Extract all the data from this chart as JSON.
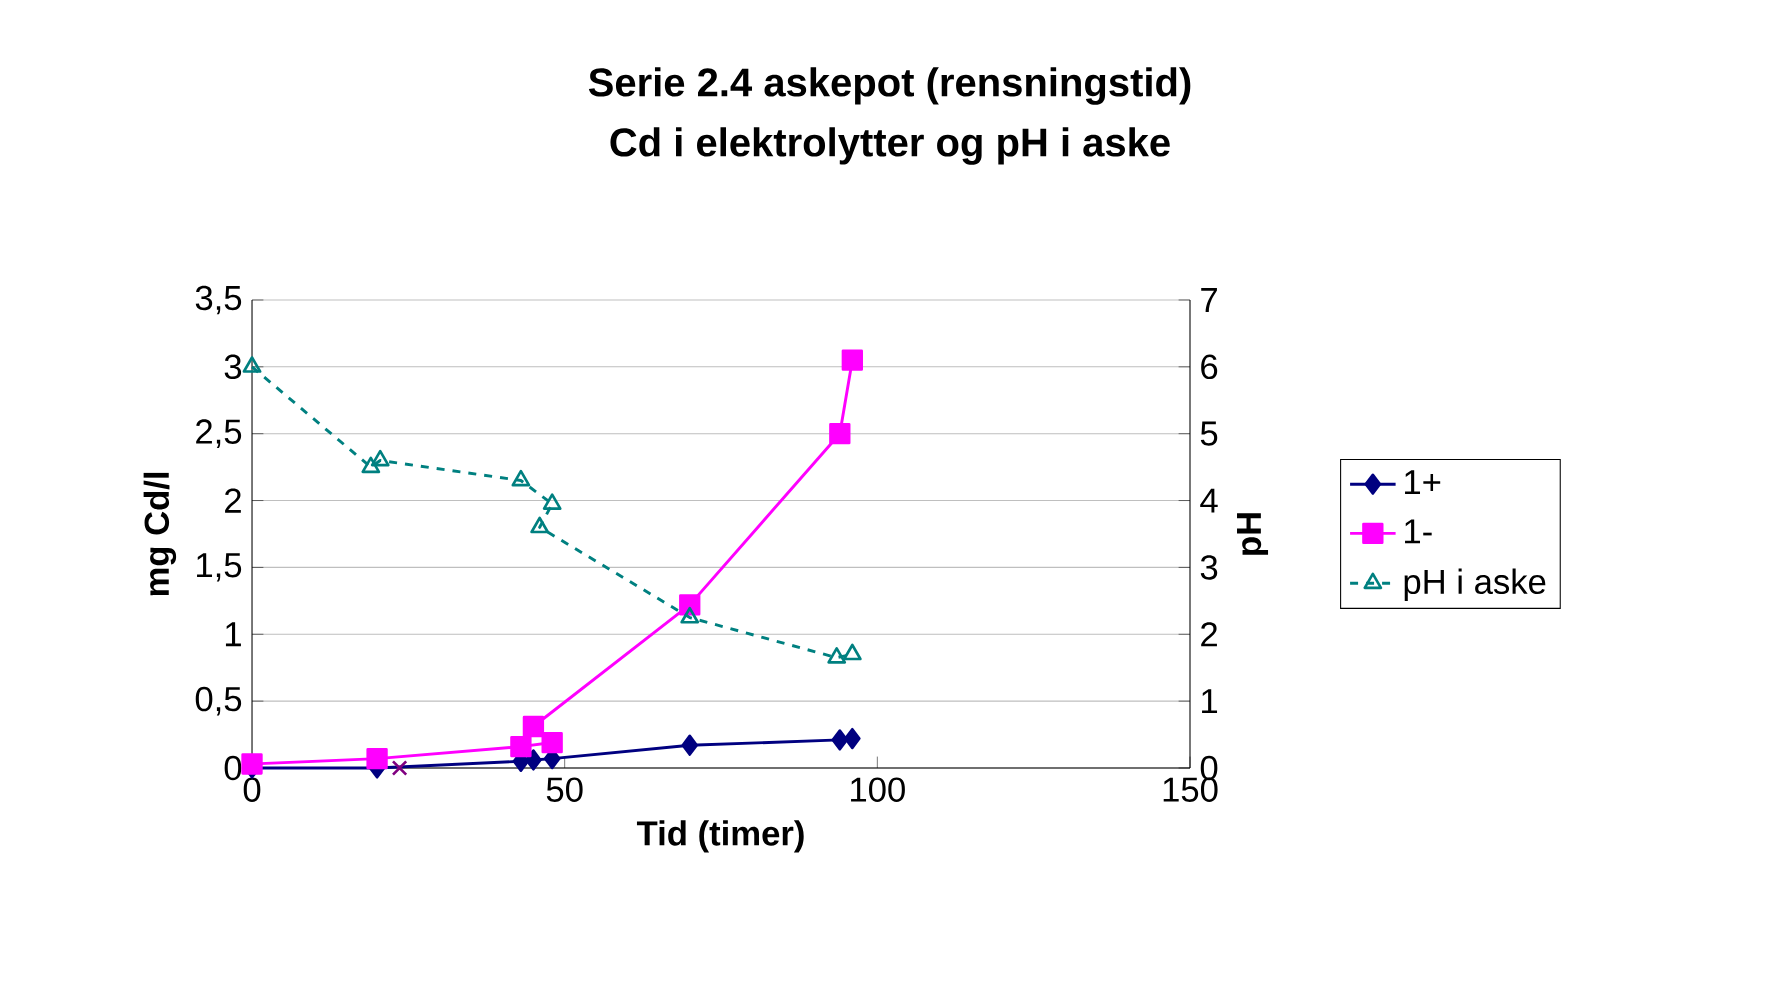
{
  "chart_data": {
    "type": "line",
    "title": "Serie 2.4 askepot (rensningstid)",
    "subtitle": "Cd i elektrolytter og pH i aske",
    "xlabel": "Tid (timer)",
    "ylabel": "mg Cd/l",
    "y2label": "pH",
    "xlim": [
      0,
      150
    ],
    "xticks": [
      0,
      50,
      100,
      150
    ],
    "ylim": [
      0,
      3.5
    ],
    "yticks": [
      0,
      {
        "value": 0.5,
        "label": "0,5"
      },
      1,
      {
        "value": 1.5,
        "label": "1,5"
      },
      2,
      {
        "value": 2.5,
        "label": "2,5"
      },
      3,
      {
        "value": 3.5,
        "label": "3,5"
      }
    ],
    "y2lim": [
      0,
      7
    ],
    "y2ticks": [
      0,
      1,
      2,
      3,
      4,
      5,
      6,
      7
    ],
    "grid": "y",
    "legend": "right",
    "series": [
      {
        "name": "1+",
        "color": "#000080",
        "marker": "diamond",
        "line_style": "solid",
        "x": [
          0,
          20,
          43,
          45,
          48,
          70,
          94,
          96
        ],
        "values": [
          0,
          0,
          0.05,
          0.06,
          0.07,
          0.17,
          0.21,
          0.22
        ]
      },
      {
        "name": "1-",
        "color": "#ff00ff",
        "marker": "square",
        "line_style": "solid",
        "x": [
          0,
          20,
          43,
          48,
          45,
          70,
          94,
          96
        ],
        "values": [
          0.03,
          0.07,
          0.16,
          0.19,
          0.31,
          1.22,
          2.5,
          3.05
        ]
      },
      {
        "name": "pH i aske",
        "color": "#008080",
        "marker": "triangle",
        "line_style": "dashed",
        "axis": "y2",
        "x": [
          0,
          19,
          20.5,
          43,
          48,
          46,
          70,
          93.5,
          96
        ],
        "values": [
          6.0,
          4.5,
          4.6,
          4.3,
          3.95,
          3.6,
          2.25,
          1.65,
          1.7
        ]
      },
      {
        "type": "scatter",
        "color": "#800080",
        "marker": "cross",
        "x": [
          23.6
        ],
        "values": [
          0
        ]
      }
    ]
  }
}
